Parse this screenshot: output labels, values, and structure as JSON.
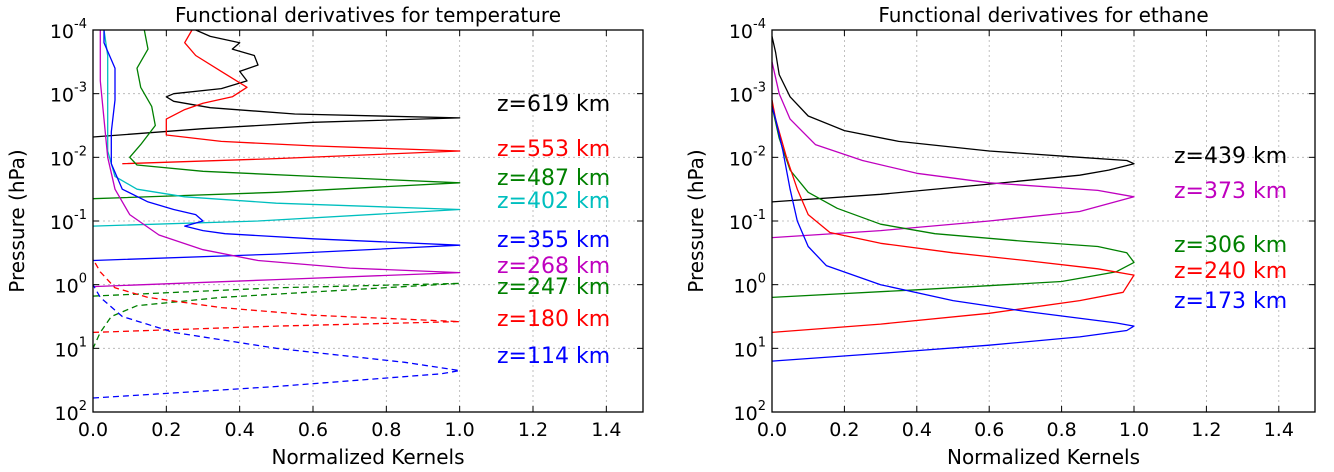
{
  "chart_data": [
    {
      "type": "line",
      "title": "Functional derivatives for temperature",
      "xlabel": "Normalized Kernels",
      "ylabel": "Pressure (hPa)",
      "xlim": [
        0.0,
        1.5
      ],
      "ylim_log10": [
        2,
        -4
      ],
      "y_scale": "log",
      "grid": true,
      "x_ticks": [
        "0.0",
        "0.2",
        "0.4",
        "0.6",
        "0.8",
        "1.0",
        "1.2",
        "1.4"
      ],
      "x_tick_values": [
        0.0,
        0.2,
        0.4,
        0.6,
        0.8,
        1.0,
        1.2,
        1.4
      ],
      "y_ticks": [
        {
          "base": "10",
          "exp": "-4",
          "log": -4
        },
        {
          "base": "10",
          "exp": "-3",
          "log": -3
        },
        {
          "base": "10",
          "exp": "-2",
          "log": -2
        },
        {
          "base": "10",
          "exp": "-1",
          "log": -1
        },
        {
          "base": "10",
          "exp": "0",
          "log": 0
        },
        {
          "base": "10",
          "exp": "1",
          "log": 1
        },
        {
          "base": "10",
          "exp": "2",
          "log": 2
        }
      ],
      "series": [
        {
          "name": "z=619 km",
          "color": "#000000",
          "dashed": false,
          "points": [
            [
              0.0,
              -2.32
            ],
            [
              0.3,
              -2.45
            ],
            [
              0.6,
              -2.55
            ],
            [
              1.0,
              -2.62
            ],
            [
              0.55,
              -2.68
            ],
            [
              0.32,
              -2.78
            ],
            [
              0.22,
              -2.88
            ],
            [
              0.2,
              -2.95
            ],
            [
              0.22,
              -3.0
            ],
            [
              0.35,
              -3.08
            ],
            [
              0.42,
              -3.2
            ],
            [
              0.4,
              -3.35
            ],
            [
              0.45,
              -3.45
            ],
            [
              0.44,
              -3.6
            ],
            [
              0.38,
              -3.7
            ],
            [
              0.4,
              -3.8
            ],
            [
              0.32,
              -3.9
            ],
            [
              0.28,
              -4.0
            ]
          ]
        },
        {
          "name": "z=553 km",
          "color": "#ff0000",
          "dashed": false,
          "points": [
            [
              0.08,
              -1.9
            ],
            [
              0.5,
              -1.98
            ],
            [
              1.0,
              -2.1
            ],
            [
              0.6,
              -2.18
            ],
            [
              0.35,
              -2.25
            ],
            [
              0.2,
              -2.35
            ],
            [
              0.2,
              -2.6
            ],
            [
              0.25,
              -2.75
            ],
            [
              0.3,
              -2.85
            ],
            [
              0.38,
              -2.95
            ],
            [
              0.42,
              -3.1
            ],
            [
              0.35,
              -3.35
            ],
            [
              0.28,
              -3.6
            ],
            [
              0.25,
              -3.8
            ],
            [
              0.27,
              -4.0
            ]
          ]
        },
        {
          "name": "z=487 km",
          "color": "#008000",
          "dashed": false,
          "points": [
            [
              0.0,
              -1.35
            ],
            [
              0.5,
              -1.45
            ],
            [
              1.0,
              -1.6
            ],
            [
              0.6,
              -1.7
            ],
            [
              0.3,
              -1.78
            ],
            [
              0.12,
              -1.88
            ],
            [
              0.1,
              -2.0
            ],
            [
              0.13,
              -2.2
            ],
            [
              0.17,
              -2.5
            ],
            [
              0.16,
              -2.8
            ],
            [
              0.13,
              -3.1
            ],
            [
              0.12,
              -3.4
            ],
            [
              0.15,
              -3.7
            ],
            [
              0.14,
              -4.0
            ]
          ]
        },
        {
          "name": "z=402 km",
          "color": "#00bfbf",
          "dashed": false,
          "points": [
            [
              0.0,
              -0.92
            ],
            [
              0.45,
              -1.0
            ],
            [
              1.0,
              -1.18
            ],
            [
              0.5,
              -1.28
            ],
            [
              0.25,
              -1.38
            ],
            [
              0.12,
              -1.5
            ],
            [
              0.06,
              -1.7
            ],
            [
              0.04,
              -2.1
            ],
            [
              0.04,
              -2.6
            ],
            [
              0.04,
              -3.1
            ],
            [
              0.04,
              -3.6
            ],
            [
              0.03,
              -4.0
            ]
          ]
        },
        {
          "name": "z=355 km",
          "color": "#0000ff",
          "dashed": false,
          "points": [
            [
              0.0,
              -0.38
            ],
            [
              0.5,
              -0.48
            ],
            [
              1.0,
              -0.62
            ],
            [
              0.6,
              -0.72
            ],
            [
              0.36,
              -0.8
            ],
            [
              0.3,
              -0.85
            ],
            [
              0.25,
              -0.92
            ],
            [
              0.3,
              -1.0
            ],
            [
              0.28,
              -1.1
            ],
            [
              0.22,
              -1.18
            ],
            [
              0.15,
              -1.3
            ],
            [
              0.08,
              -1.5
            ],
            [
              0.05,
              -1.9
            ],
            [
              0.05,
              -2.4
            ],
            [
              0.06,
              -2.9
            ],
            [
              0.06,
              -3.4
            ],
            [
              0.03,
              -3.8
            ],
            [
              0.03,
              -4.0
            ]
          ]
        },
        {
          "name": "z=268 km",
          "color": "#bf00bf",
          "dashed": false,
          "points": [
            [
              0.0,
              0.03
            ],
            [
              0.5,
              -0.08
            ],
            [
              1.0,
              -0.19
            ],
            [
              0.7,
              -0.26
            ],
            [
              0.45,
              -0.38
            ],
            [
              0.3,
              -0.55
            ],
            [
              0.18,
              -0.78
            ],
            [
              0.1,
              -1.1
            ],
            [
              0.06,
              -1.5
            ],
            [
              0.04,
              -2.0
            ],
            [
              0.03,
              -2.6
            ],
            [
              0.02,
              -3.2
            ],
            [
              0.02,
              -4.0
            ]
          ]
        },
        {
          "name": "z=247 km",
          "color": "#008000",
          "dashed": true,
          "points": [
            [
              0.0,
              0.18
            ],
            [
              0.5,
              0.05
            ],
            [
              1.0,
              -0.02
            ],
            [
              0.7,
              0.08
            ],
            [
              0.35,
              0.2
            ],
            [
              0.12,
              0.33
            ],
            [
              0.05,
              0.5
            ],
            [
              0.02,
              0.75
            ],
            [
              0.0,
              1.0
            ]
          ]
        },
        {
          "name": "z=180 km",
          "color": "#ff0000",
          "dashed": true,
          "points": [
            [
              0.0,
              0.75
            ],
            [
              0.5,
              0.65
            ],
            [
              1.0,
              0.58
            ],
            [
              0.6,
              0.48
            ],
            [
              0.35,
              0.36
            ],
            [
              0.15,
              0.2
            ],
            [
              0.06,
              0.05
            ],
            [
              0.02,
              -0.2
            ],
            [
              0.0,
              -0.4
            ]
          ]
        },
        {
          "name": "z=114 km",
          "color": "#0000ff",
          "dashed": true,
          "points": [
            [
              0.0,
              1.78
            ],
            [
              0.5,
              1.6
            ],
            [
              0.95,
              1.4
            ],
            [
              1.0,
              1.35
            ],
            [
              0.85,
              1.22
            ],
            [
              0.5,
              1.0
            ],
            [
              0.22,
              0.75
            ],
            [
              0.08,
              0.5
            ],
            [
              0.02,
              0.2
            ],
            [
              0.0,
              0.0
            ]
          ]
        }
      ],
      "legend": [
        {
          "text": "z=619 km",
          "color": "#000000"
        },
        {
          "text": "z=553 km",
          "color": "#ff0000"
        },
        {
          "text": "z=487 km",
          "color": "#008000"
        },
        {
          "text": "z=402 km",
          "color": "#00bfbf"
        },
        {
          "text": "z=355 km",
          "color": "#0000ff"
        },
        {
          "text": "z=268 km",
          "color": "#bf00bf"
        },
        {
          "text": "z=247 km",
          "color": "#008000"
        },
        {
          "text": "z=180 km",
          "color": "#ff0000"
        },
        {
          "text": "z=114 km",
          "color": "#0000ff"
        }
      ]
    },
    {
      "type": "line",
      "title": "Functional derivatives for ethane",
      "xlabel": "Normalized Kernels",
      "ylabel": "Pressure (hPa)",
      "xlim": [
        0.0,
        1.5
      ],
      "ylim_log10": [
        2,
        -4
      ],
      "y_scale": "log",
      "grid": true,
      "x_ticks": [
        "0.0",
        "0.2",
        "0.4",
        "0.6",
        "0.8",
        "1.0",
        "1.2",
        "1.4"
      ],
      "x_tick_values": [
        0.0,
        0.2,
        0.4,
        0.6,
        0.8,
        1.0,
        1.2,
        1.4
      ],
      "y_ticks": [
        {
          "base": "10",
          "exp": "-4",
          "log": -4
        },
        {
          "base": "10",
          "exp": "-3",
          "log": -3
        },
        {
          "base": "10",
          "exp": "-2",
          "log": -2
        },
        {
          "base": "10",
          "exp": "-1",
          "log": -1
        },
        {
          "base": "10",
          "exp": "0",
          "log": 0
        },
        {
          "base": "10",
          "exp": "1",
          "log": 1
        },
        {
          "base": "10",
          "exp": "2",
          "log": 2
        }
      ],
      "series": [
        {
          "name": "z=439 km",
          "color": "#000000",
          "dashed": false,
          "points": [
            [
              0.0,
              -1.3
            ],
            [
              0.3,
              -1.42
            ],
            [
              0.6,
              -1.58
            ],
            [
              0.85,
              -1.72
            ],
            [
              0.93,
              -1.8
            ],
            [
              1.0,
              -1.9
            ],
            [
              0.98,
              -1.95
            ],
            [
              0.85,
              -2.0
            ],
            [
              0.6,
              -2.1
            ],
            [
              0.35,
              -2.25
            ],
            [
              0.2,
              -2.42
            ],
            [
              0.1,
              -2.65
            ],
            [
              0.05,
              -2.95
            ],
            [
              0.02,
              -3.3
            ],
            [
              0.01,
              -3.65
            ],
            [
              0.0,
              -3.9
            ]
          ]
        },
        {
          "name": "z=373 km",
          "color": "#bf00bf",
          "dashed": false,
          "points": [
            [
              0.0,
              -0.74
            ],
            [
              0.3,
              -0.85
            ],
            [
              0.6,
              -1.0
            ],
            [
              0.85,
              -1.15
            ],
            [
              1.0,
              -1.38
            ],
            [
              0.9,
              -1.48
            ],
            [
              0.6,
              -1.6
            ],
            [
              0.4,
              -1.75
            ],
            [
              0.25,
              -1.95
            ],
            [
              0.12,
              -2.2
            ],
            [
              0.05,
              -2.6
            ],
            [
              0.02,
              -3.0
            ],
            [
              0.0,
              -3.5
            ]
          ]
        },
        {
          "name": "z=306 km",
          "color": "#008000",
          "dashed": false,
          "points": [
            [
              0.0,
              0.2
            ],
            [
              0.4,
              0.08
            ],
            [
              0.8,
              -0.05
            ],
            [
              0.95,
              -0.2
            ],
            [
              1.0,
              -0.35
            ],
            [
              0.98,
              -0.5
            ],
            [
              0.9,
              -0.6
            ],
            [
              0.7,
              -0.68
            ],
            [
              0.45,
              -0.8
            ],
            [
              0.3,
              -0.95
            ],
            [
              0.18,
              -1.2
            ],
            [
              0.1,
              -1.45
            ],
            [
              0.05,
              -1.8
            ],
            [
              0.02,
              -2.3
            ],
            [
              0.0,
              -2.8
            ]
          ]
        },
        {
          "name": "z=240 km",
          "color": "#ff0000",
          "dashed": false,
          "points": [
            [
              0.0,
              0.75
            ],
            [
              0.3,
              0.62
            ],
            [
              0.6,
              0.45
            ],
            [
              0.85,
              0.25
            ],
            [
              0.97,
              0.12
            ],
            [
              1.0,
              -0.15
            ],
            [
              0.9,
              -0.25
            ],
            [
              0.7,
              -0.38
            ],
            [
              0.5,
              -0.5
            ],
            [
              0.3,
              -0.65
            ],
            [
              0.16,
              -0.82
            ],
            [
              0.1,
              -1.1
            ],
            [
              0.07,
              -1.5
            ],
            [
              0.04,
              -2.0
            ],
            [
              0.01,
              -2.6
            ],
            [
              0.0,
              -2.9
            ]
          ]
        },
        {
          "name": "z=173 km",
          "color": "#0000ff",
          "dashed": false,
          "points": [
            [
              0.0,
              1.2
            ],
            [
              0.3,
              1.08
            ],
            [
              0.6,
              0.95
            ],
            [
              0.85,
              0.82
            ],
            [
              0.98,
              0.72
            ],
            [
              1.0,
              0.65
            ],
            [
              0.95,
              0.6
            ],
            [
              0.7,
              0.42
            ],
            [
              0.5,
              0.25
            ],
            [
              0.3,
              0.0
            ],
            [
              0.15,
              -0.3
            ],
            [
              0.1,
              -0.6
            ],
            [
              0.07,
              -1.0
            ],
            [
              0.05,
              -1.5
            ],
            [
              0.03,
              -2.1
            ],
            [
              0.01,
              -2.6
            ],
            [
              0.0,
              -2.8
            ]
          ]
        }
      ],
      "legend": [
        {
          "text": "z=439 km",
          "color": "#000000"
        },
        {
          "text": "z=373 km",
          "color": "#bf00bf"
        },
        {
          "text": "z=306 km",
          "color": "#008000"
        },
        {
          "text": "z=240 km",
          "color": "#ff0000"
        },
        {
          "text": "z=173 km",
          "color": "#0000ff"
        }
      ]
    }
  ]
}
